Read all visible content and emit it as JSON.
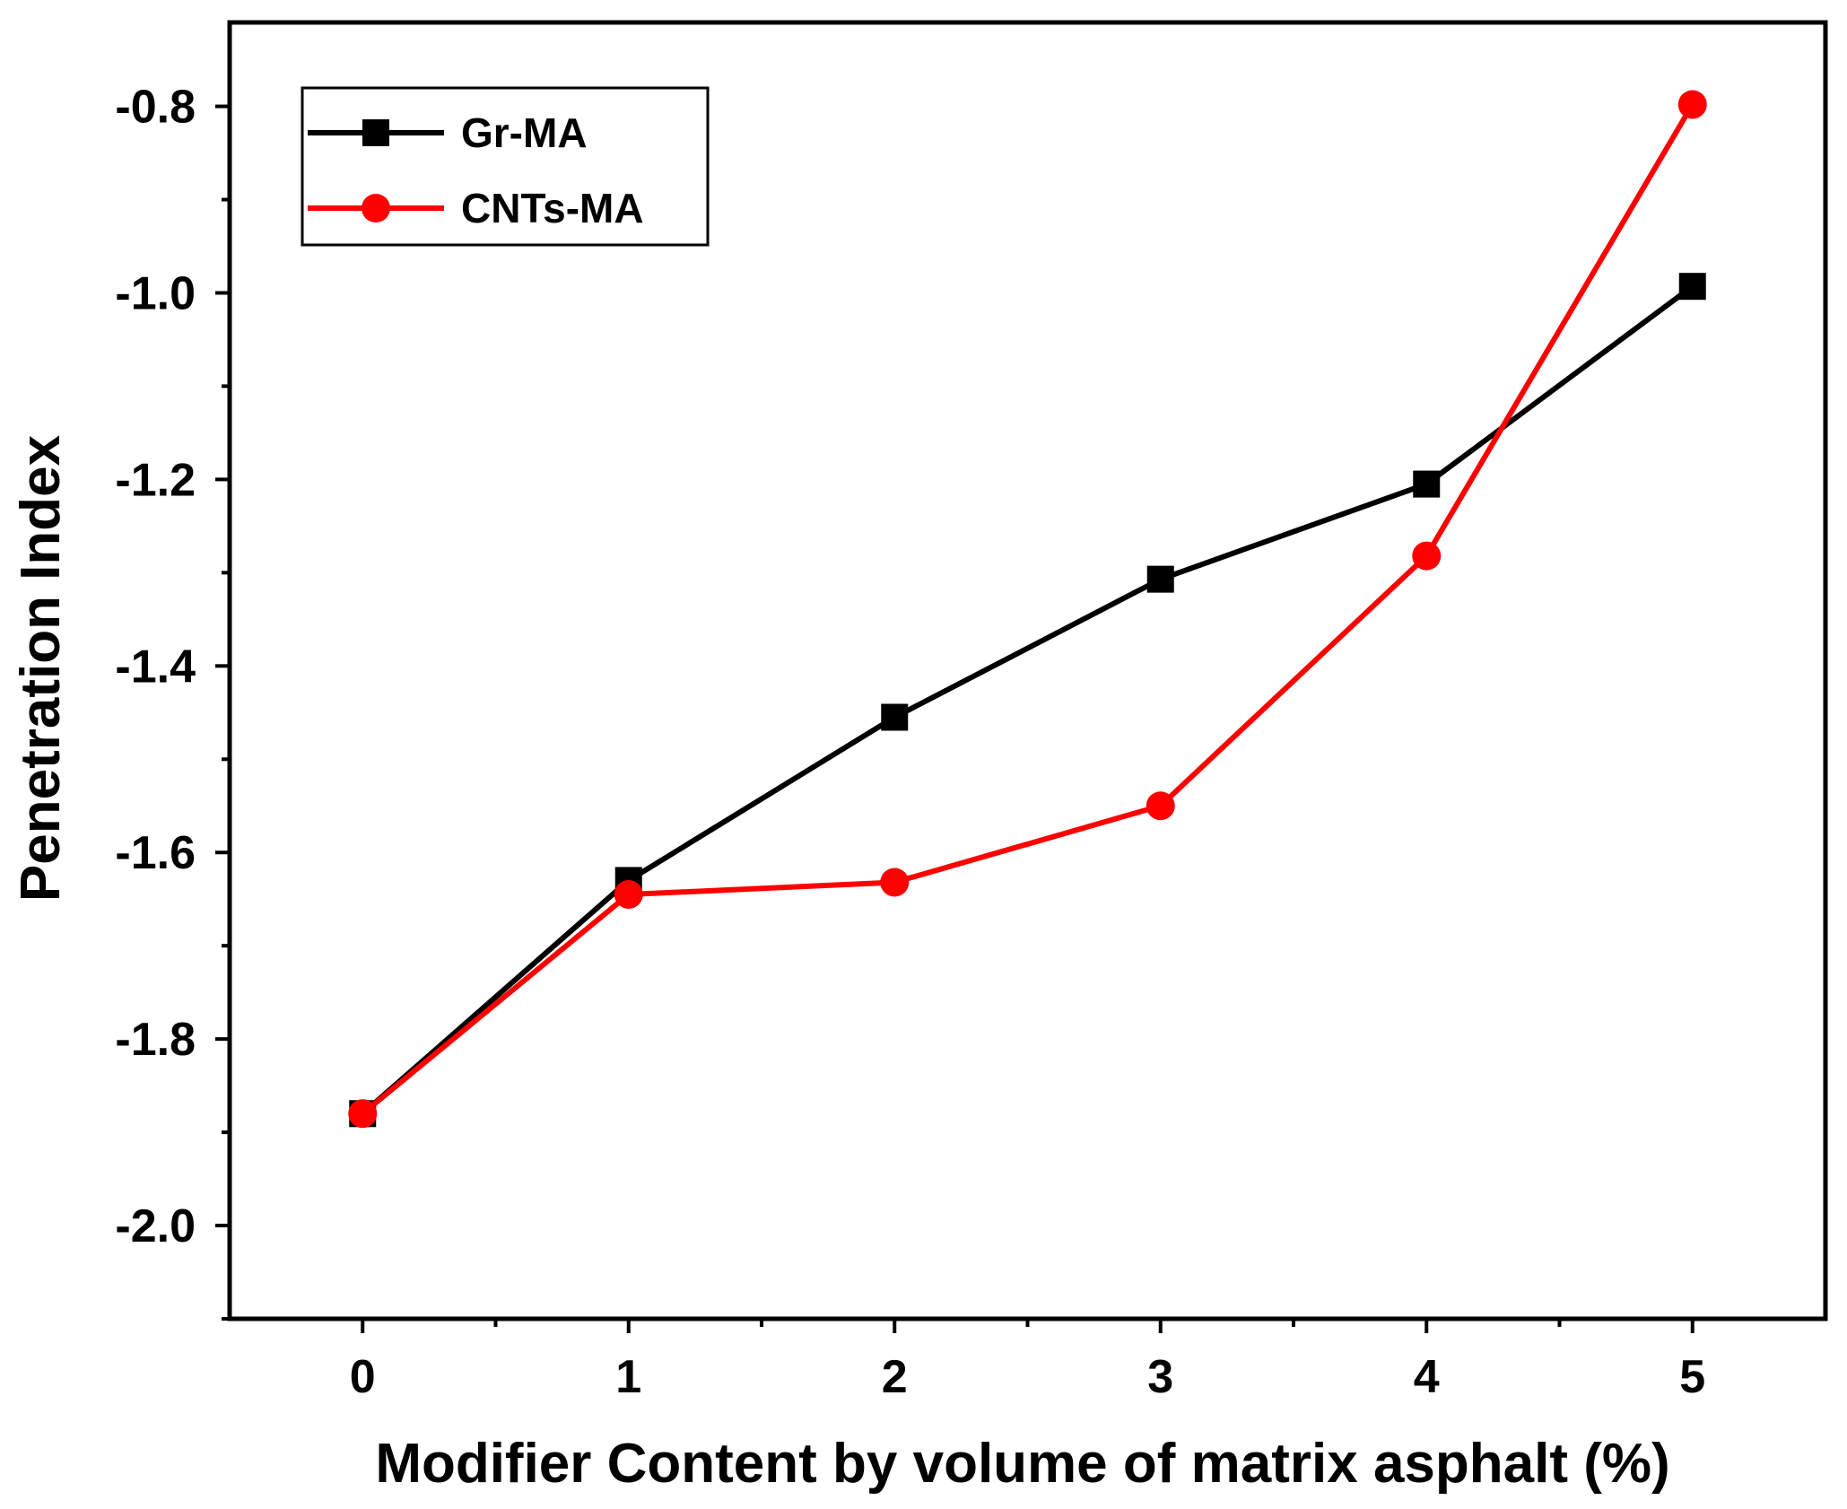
{
  "chart_data": {
    "type": "line",
    "title": "",
    "xlabel": "Modifier Content by volume of matrix asphalt (%)",
    "ylabel": "Penetration  Index",
    "x": [
      0,
      1,
      2,
      3,
      4,
      5
    ],
    "xticks": [
      "0",
      "1",
      "2",
      "3",
      "4",
      "5"
    ],
    "xlim": [
      -0.5,
      5.5
    ],
    "yticks": [
      "-0.8",
      "-1.0",
      "-1.2",
      "-1.4",
      "-1.6",
      "-1.8",
      "-2.0"
    ],
    "ylim": [
      -2.1,
      -0.71
    ],
    "grid": false,
    "legend_position": "top-left",
    "series": [
      {
        "name": "Gr-MA",
        "color": "#000000",
        "marker": "square",
        "values": [
          -1.88,
          -1.63,
          -1.455,
          -1.307,
          -1.205,
          -0.993
        ]
      },
      {
        "name": "CNTs-MA",
        "color": "#ff0000",
        "marker": "circle",
        "values": [
          -1.88,
          -1.645,
          -1.632,
          -1.55,
          -1.282,
          -0.798
        ]
      }
    ]
  }
}
